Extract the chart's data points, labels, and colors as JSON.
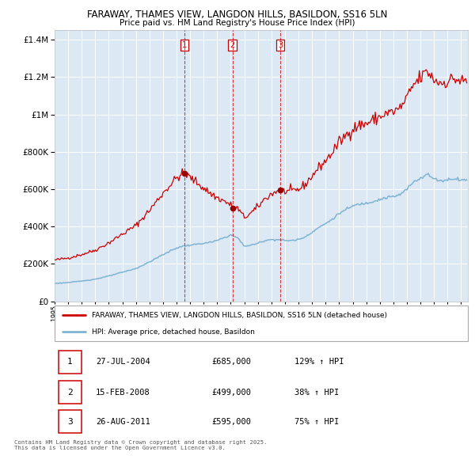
{
  "title": "FARAWAY, THAMES VIEW, LANGDON HILLS, BASILDON, SS16 5LN",
  "subtitle": "Price paid vs. HM Land Registry's House Price Index (HPI)",
  "legend_red": "FARAWAY, THAMES VIEW, LANGDON HILLS, BASILDON, SS16 5LN (detached house)",
  "legend_blue": "HPI: Average price, detached house, Basildon",
  "footer": "Contains HM Land Registry data © Crown copyright and database right 2025.\nThis data is licensed under the Open Government Licence v3.0.",
  "transactions": [
    {
      "num": 1,
      "date": "27-JUL-2004",
      "price": 685000,
      "hpi_pct": "129%",
      "direction": "↑"
    },
    {
      "num": 2,
      "date": "15-FEB-2008",
      "price": 499000,
      "hpi_pct": "38%",
      "direction": "↑"
    },
    {
      "num": 3,
      "date": "26-AUG-2011",
      "price": 595000,
      "hpi_pct": "75%",
      "direction": "↑"
    }
  ],
  "transaction_dates_decimal": [
    2004.57,
    2008.12,
    2011.65
  ],
  "ylim": [
    0,
    1450000
  ],
  "xlim_start": 1995.0,
  "xlim_end": 2025.5,
  "background_color": "#dce9f5",
  "red_color": "#cc0000",
  "blue_color": "#7fb3d3",
  "grid_color": "#ffffff",
  "vline_color": "#cc0000",
  "dot_color": "#990000",
  "hpi_anchors": [
    [
      1995.0,
      95000
    ],
    [
      1996.0,
      100000
    ],
    [
      1997.0,
      108000
    ],
    [
      1998.0,
      118000
    ],
    [
      1999.0,
      135000
    ],
    [
      2000.0,
      155000
    ],
    [
      2001.0,
      175000
    ],
    [
      2002.0,
      210000
    ],
    [
      2003.0,
      250000
    ],
    [
      2004.0,
      285000
    ],
    [
      2004.5,
      295000
    ],
    [
      2005.0,
      300000
    ],
    [
      2005.5,
      305000
    ],
    [
      2006.0,
      310000
    ],
    [
      2006.5,
      315000
    ],
    [
      2007.0,
      325000
    ],
    [
      2007.5,
      340000
    ],
    [
      2008.0,
      355000
    ],
    [
      2008.5,
      340000
    ],
    [
      2009.0,
      295000
    ],
    [
      2009.5,
      300000
    ],
    [
      2010.0,
      310000
    ],
    [
      2010.5,
      325000
    ],
    [
      2011.0,
      330000
    ],
    [
      2011.5,
      330000
    ],
    [
      2012.0,
      325000
    ],
    [
      2012.5,
      325000
    ],
    [
      2013.0,
      330000
    ],
    [
      2013.5,
      345000
    ],
    [
      2014.0,
      370000
    ],
    [
      2014.5,
      395000
    ],
    [
      2015.0,
      415000
    ],
    [
      2015.5,
      440000
    ],
    [
      2016.0,
      470000
    ],
    [
      2016.5,
      490000
    ],
    [
      2017.0,
      510000
    ],
    [
      2017.5,
      520000
    ],
    [
      2018.0,
      525000
    ],
    [
      2018.5,
      535000
    ],
    [
      2019.0,
      545000
    ],
    [
      2019.5,
      555000
    ],
    [
      2020.0,
      560000
    ],
    [
      2020.5,
      570000
    ],
    [
      2021.0,
      600000
    ],
    [
      2021.5,
      640000
    ],
    [
      2022.0,
      660000
    ],
    [
      2022.5,
      680000
    ],
    [
      2023.0,
      655000
    ],
    [
      2023.5,
      645000
    ],
    [
      2024.0,
      650000
    ],
    [
      2024.5,
      658000
    ],
    [
      2025.0,
      650000
    ]
  ],
  "sale_prices": [
    685000,
    499000,
    595000
  ]
}
